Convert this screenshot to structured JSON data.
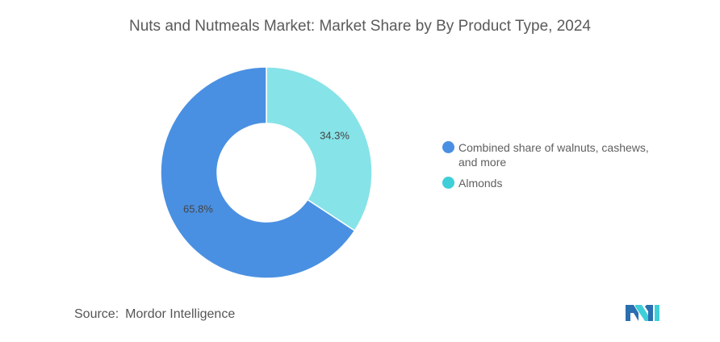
{
  "chart_data": {
    "type": "pie",
    "style": "donut",
    "title": "Nuts and Nutmeals Market: Market Share by By Product Type, 2024",
    "slices": [
      {
        "label": "Almonds",
        "value": 34.3,
        "value_label": "34.3%",
        "color": "#86E3E8"
      },
      {
        "label": "Combined share of walnuts, cashews, and more",
        "value": 65.8,
        "value_label": "65.8%",
        "color": "#4A90E2"
      }
    ],
    "legend": {
      "placement": "right",
      "items": [
        {
          "label": "Combined share of walnuts, cashews, and more",
          "color": "#4A90E2"
        },
        {
          "label": "Almonds",
          "color": "#3ECFD9"
        }
      ]
    }
  },
  "footer": {
    "source_key": "Source:",
    "source_value": "Mordor Intelligence"
  },
  "logo": {
    "icon": "mordor-intelligence-logo-icon",
    "colors": [
      "#2A6FB0",
      "#3ECFD9"
    ]
  }
}
